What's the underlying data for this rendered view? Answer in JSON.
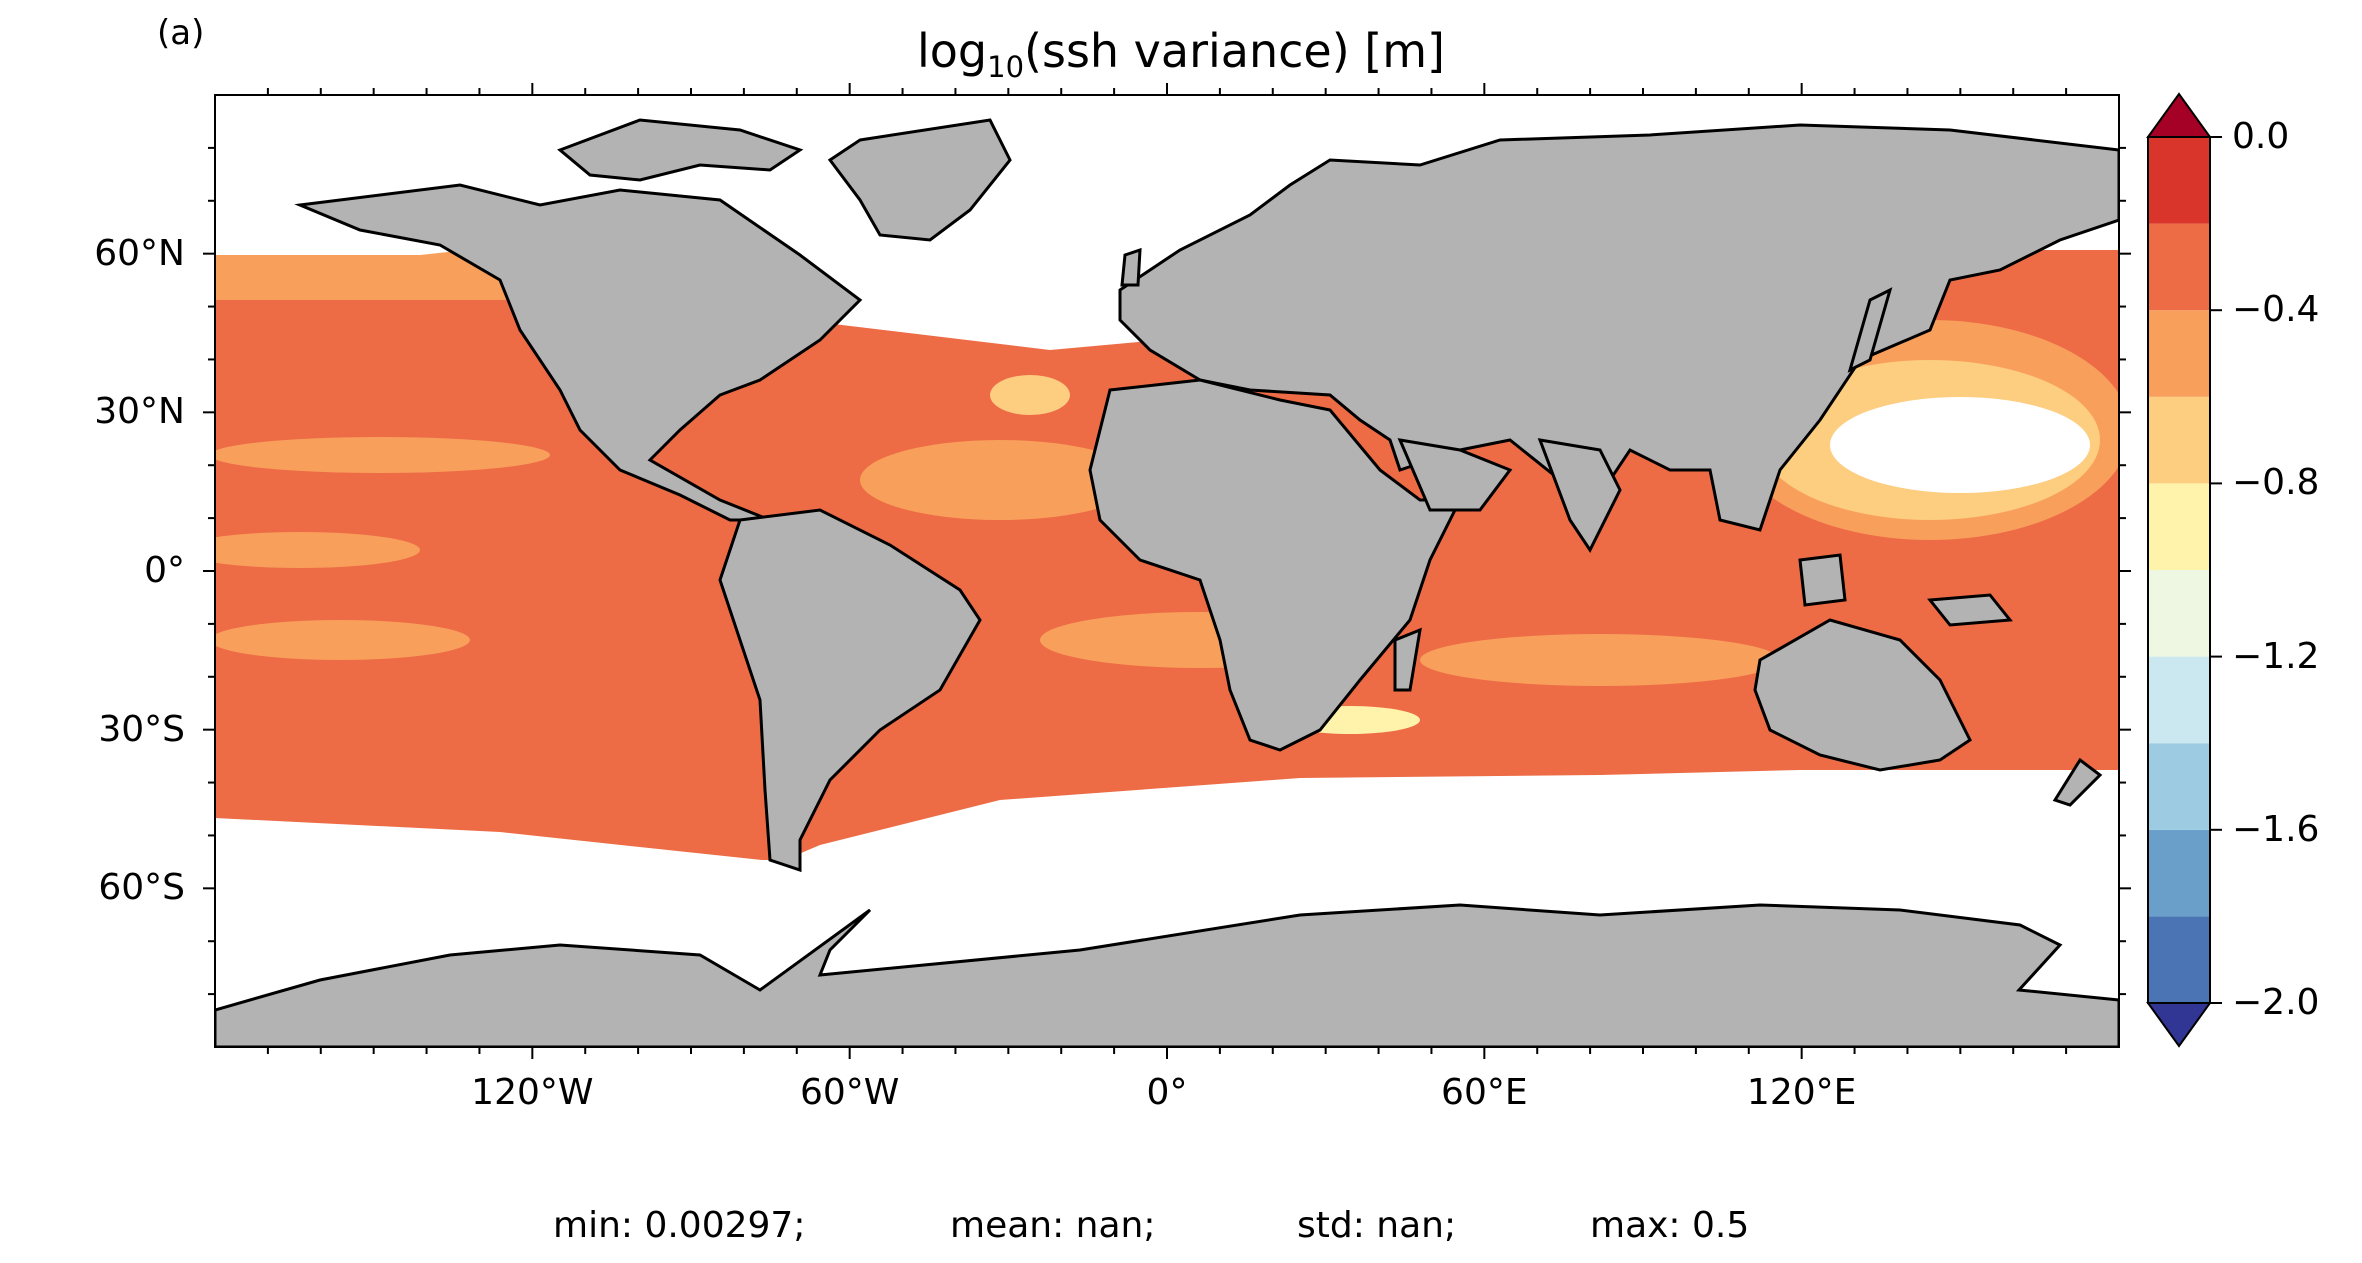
{
  "panel_label": "(a)",
  "title": {
    "prefix": "log",
    "subscript": "10",
    "suffix": "(ssh variance) [m]"
  },
  "map": {
    "projection": "PlateCarree",
    "land_color": "#b3b3b3",
    "coastline_color": "#000000",
    "missing_data_color": "#ffffff",
    "lat_ticks": [
      {
        "lat": 60,
        "label": "60°N"
      },
      {
        "lat": 30,
        "label": "30°N"
      },
      {
        "lat": 0,
        "label": "0°"
      },
      {
        "lat": -30,
        "label": "30°S"
      },
      {
        "lat": -60,
        "label": "60°S"
      }
    ],
    "lon_ticks": [
      {
        "lon": -120,
        "label": "120°W"
      },
      {
        "lon": -60,
        "label": "60°W"
      },
      {
        "lon": 0,
        "label": "0°"
      },
      {
        "lon": 60,
        "label": "60°E"
      },
      {
        "lon": 120,
        "label": "120°E"
      }
    ]
  },
  "colorbar": {
    "levels": [
      -2.0,
      -1.8,
      -1.6,
      -1.4,
      -1.2,
      -1.0,
      -0.8,
      -0.6,
      -0.4,
      -0.2,
      0.0
    ],
    "colors": [
      "#4a74b4",
      "#6a9fca",
      "#9dcce2",
      "#cbe7ef",
      "#eef7e2",
      "#fff3ac",
      "#fdcd80",
      "#f99f5c",
      "#ed6c46",
      "#d9352a"
    ],
    "under_color": "#313695",
    "over_color": "#a50026",
    "tick_labels": [
      {
        "value": 0.0,
        "label": "0.0"
      },
      {
        "value": -0.4,
        "label": "−0.4"
      },
      {
        "value": -0.8,
        "label": "−0.8"
      },
      {
        "value": -1.2,
        "label": "−1.2"
      },
      {
        "value": -1.6,
        "label": "−1.6"
      },
      {
        "value": -2.0,
        "label": "−2.0"
      }
    ]
  },
  "stats": {
    "min": "min: 0.00297;",
    "mean": "mean: nan;",
    "std": "std: nan;",
    "max": "max: 0.5"
  }
}
